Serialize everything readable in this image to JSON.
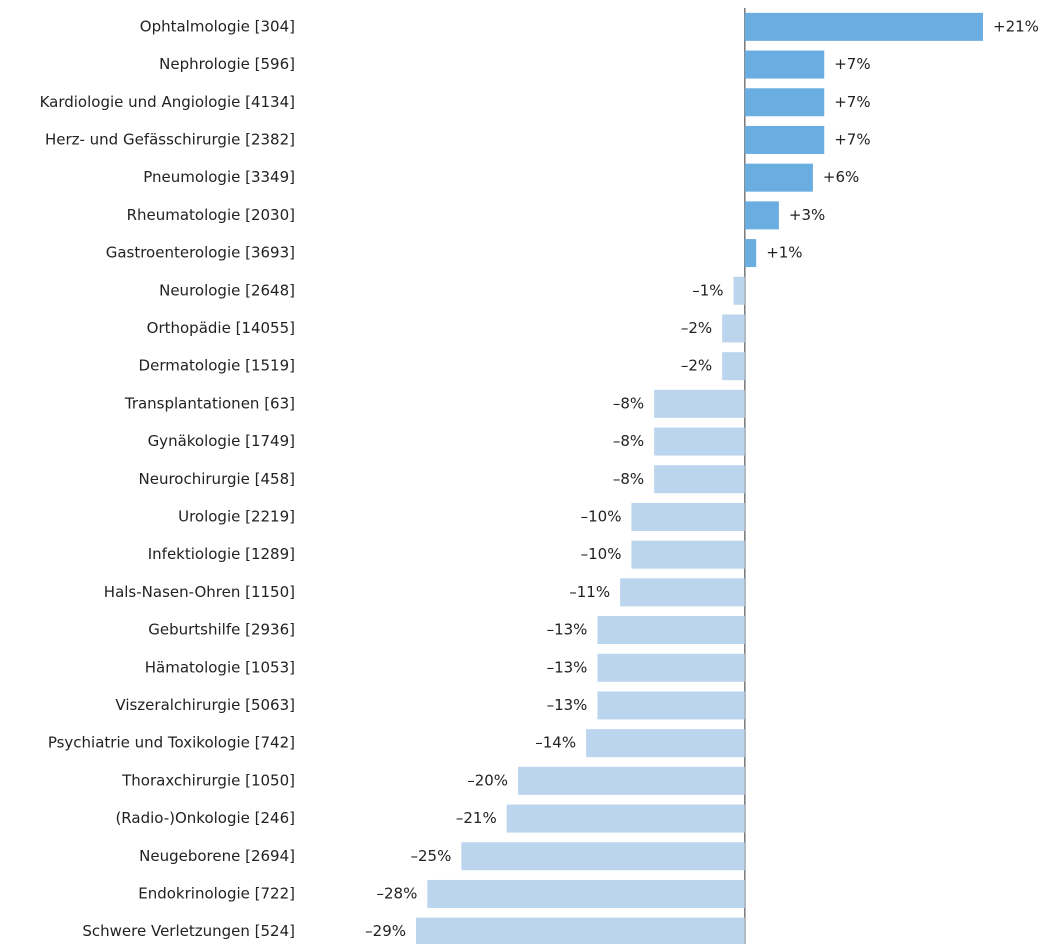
{
  "chart_data": {
    "type": "barh",
    "categories": [
      "Ophtalmologie [304]",
      "Nephrologie [596]",
      "Kardiologie und Angiologie [4134]",
      "Herz- und Gefässchirurgie [2382]",
      "Pneumologie [3349]",
      "Rheumatologie [2030]",
      "Gastroenterologie [3693]",
      "Neurologie [2648]",
      "Orthopädie [14055]",
      "Dermatologie [1519]",
      "Transplantationen [63]",
      "Gynäkologie [1749]",
      "Neurochirurgie [458]",
      "Urologie [2219]",
      "Infektiologie [1289]",
      "Hals-Nasen-Ohren [1150]",
      "Geburtshilfe [2936]",
      "Hämatologie [1053]",
      "Viszeralchirurgie [5063]",
      "Psychiatrie und Toxikologie [742]",
      "Thoraxchirurgie [1050]",
      "(Radio-)Onkologie [246]",
      "Neugeborene [2694]",
      "Endokrinologie [722]",
      "Schwere Verletzungen [524]"
    ],
    "values": [
      21,
      7,
      7,
      7,
      6,
      3,
      1,
      -1,
      -2,
      -2,
      -8,
      -8,
      -8,
      -10,
      -10,
      -11,
      -13,
      -13,
      -13,
      -14,
      -20,
      -21,
      -25,
      -28,
      -29
    ],
    "value_labels": [
      "+21%",
      "+7%",
      "+7%",
      "+7%",
      "+6%",
      "+3%",
      "+1%",
      "–1%",
      "–2%",
      "–2%",
      "–8%",
      "–8%",
      "–8%",
      "–10%",
      "–10%",
      "–11%",
      "–13%",
      "–13%",
      "–13%",
      "–14%",
      "–20%",
      "–21%",
      "–25%",
      "–28%",
      "–29%"
    ],
    "positive_color": "#6aade0",
    "negative_color": "#bbd5ee"
  }
}
